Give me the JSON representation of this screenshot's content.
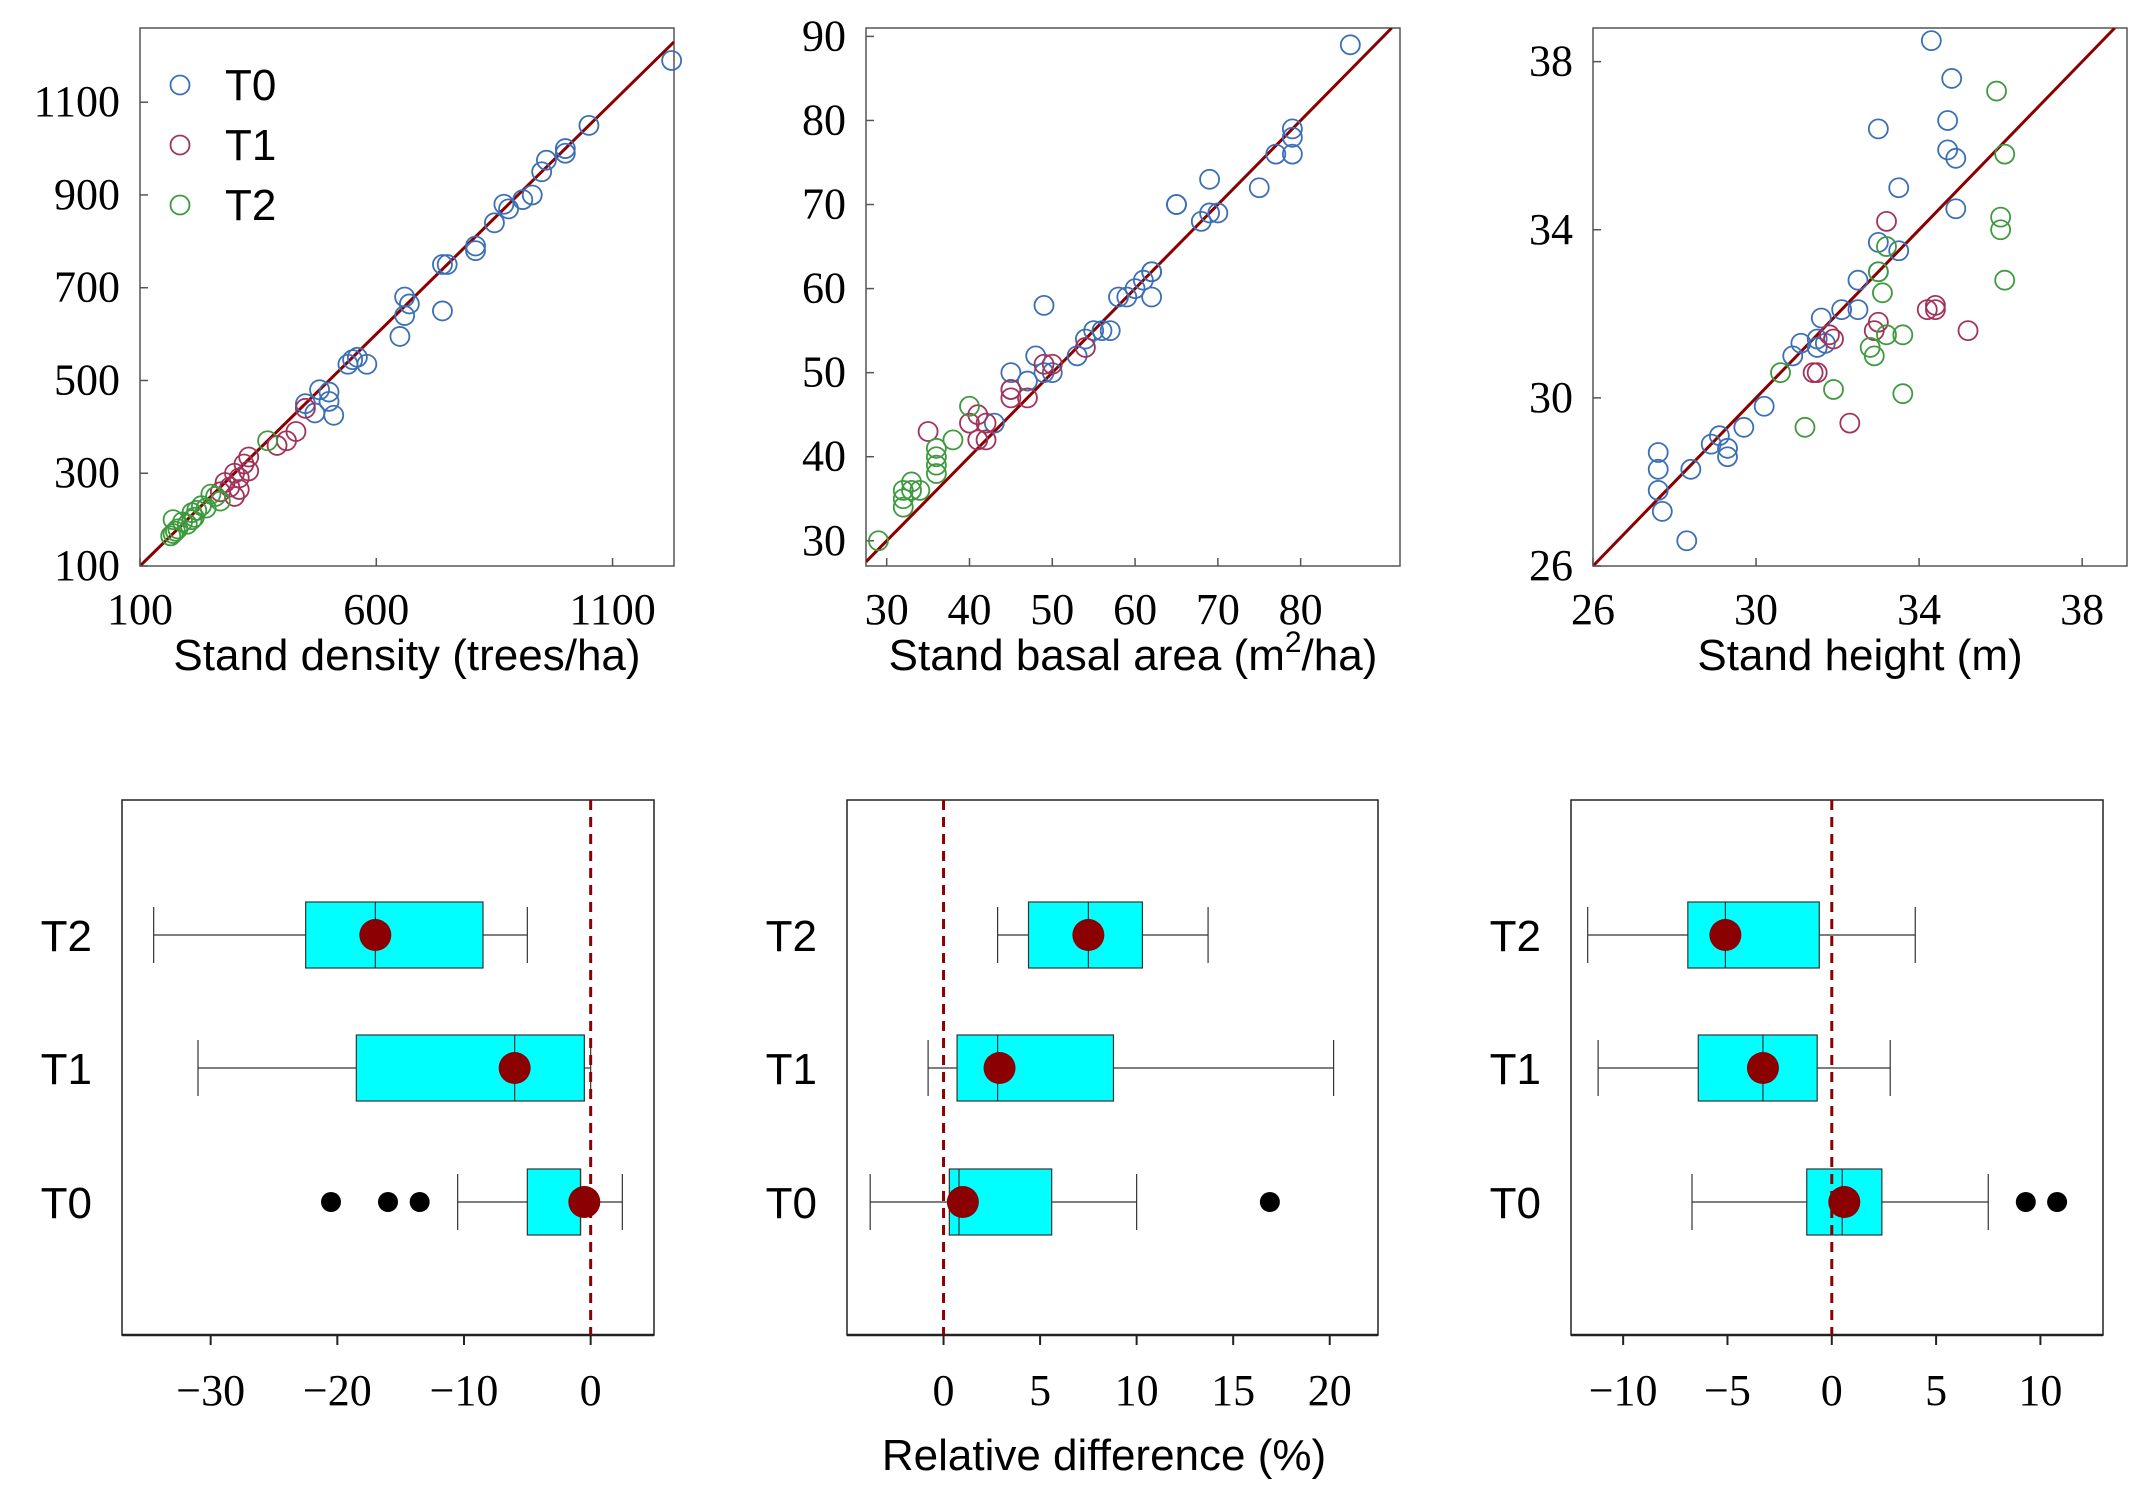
{
  "figure": {
    "shared_xlabel": "Relative difference (%)"
  },
  "colors": {
    "T0": "#3b6fb6",
    "T1": "#a3325a",
    "T2": "#3e9a3e",
    "line": "#8b0000",
    "box": "#00ffff",
    "mean": "#8b0000",
    "outlier": "#000000"
  },
  "chart_data": [
    {
      "id": "density",
      "type": "scatter",
      "xlabel": "Stand density (trees/ha)",
      "ylabel": "",
      "xlim": [
        100,
        1230
      ],
      "ylim": [
        100,
        1260
      ],
      "xticks": [
        100,
        600,
        1100
      ],
      "yticks": [
        100,
        300,
        500,
        700,
        900,
        1100
      ],
      "reference_line": "1:1",
      "legend": {
        "position": "top-left",
        "entries": [
          "T0",
          "T1",
          "T2"
        ]
      },
      "series": [
        {
          "name": "T0",
          "points": [
            [
              1225,
              1190
            ],
            [
              1050,
              1050
            ],
            [
              1000,
              990
            ],
            [
              1000,
              1000
            ],
            [
              960,
              975
            ],
            [
              950,
              950
            ],
            [
              930,
              900
            ],
            [
              910,
              890
            ],
            [
              870,
              880
            ],
            [
              880,
              870
            ],
            [
              850,
              840
            ],
            [
              810,
              790
            ],
            [
              810,
              780
            ],
            [
              750,
              750
            ],
            [
              740,
              750
            ],
            [
              740,
              650
            ],
            [
              670,
              665
            ],
            [
              660,
              680
            ],
            [
              660,
              640
            ],
            [
              650,
              595
            ],
            [
              580,
              535
            ],
            [
              560,
              550
            ],
            [
              550,
              545
            ],
            [
              540,
              535
            ],
            [
              500,
              475
            ],
            [
              500,
              455
            ],
            [
              510,
              425
            ],
            [
              470,
              430
            ],
            [
              480,
              480
            ],
            [
              450,
              450
            ]
          ]
        },
        {
          "name": "T1",
          "points": [
            [
              450,
              440
            ],
            [
              430,
              390
            ],
            [
              410,
              370
            ],
            [
              390,
              360
            ],
            [
              330,
              305
            ],
            [
              330,
              335
            ],
            [
              320,
              320
            ],
            [
              310,
              290
            ],
            [
              310,
              265
            ],
            [
              300,
              300
            ],
            [
              300,
              250
            ],
            [
              290,
              270
            ],
            [
              280,
              280
            ],
            [
              270,
              260
            ]
          ]
        },
        {
          "name": "T2",
          "points": [
            [
              370,
              370
            ],
            [
              270,
              240
            ],
            [
              260,
              250
            ],
            [
              250,
              255
            ],
            [
              240,
              225
            ],
            [
              230,
              230
            ],
            [
              220,
              220
            ],
            [
              210,
              200
            ],
            [
              215,
              205
            ],
            [
              210,
              215
            ],
            [
              200,
              190
            ],
            [
              190,
              195
            ],
            [
              180,
              180
            ],
            [
              175,
              175
            ],
            [
              170,
              170
            ],
            [
              165,
              165
            ],
            [
              170,
              200
            ]
          ]
        }
      ]
    },
    {
      "id": "basal",
      "type": "scatter",
      "xlabel": "Stand basal area (m",
      "xlabel_sup": "2",
      "xlabel_end": "/ha)",
      "ylabel": "",
      "xlim": [
        27.5,
        92
      ],
      "ylim": [
        27,
        91
      ],
      "xticks": [
        30,
        40,
        50,
        60,
        70,
        80
      ],
      "yticks": [
        30,
        40,
        50,
        60,
        70,
        80,
        90
      ],
      "reference_line": "1:1",
      "series": [
        {
          "name": "T0",
          "points": [
            [
              86,
              89
            ],
            [
              79,
              79
            ],
            [
              79,
              78
            ],
            [
              79,
              76
            ],
            [
              77,
              76
            ],
            [
              75,
              72
            ],
            [
              70,
              69
            ],
            [
              69,
              73
            ],
            [
              69,
              69
            ],
            [
              68,
              68
            ],
            [
              65,
              70
            ],
            [
              65,
              70
            ],
            [
              62,
              62
            ],
            [
              62,
              59
            ],
            [
              62,
              62
            ],
            [
              61,
              61
            ],
            [
              60,
              60
            ],
            [
              59,
              59
            ],
            [
              58,
              59
            ],
            [
              57,
              55
            ],
            [
              56,
              55
            ],
            [
              55,
              55
            ],
            [
              54,
              54
            ],
            [
              53,
              52
            ],
            [
              50,
              50
            ],
            [
              49,
              58
            ],
            [
              49,
              50
            ],
            [
              48,
              52
            ],
            [
              47,
              49
            ],
            [
              45,
              50
            ],
            [
              45,
              48
            ],
            [
              43,
              44
            ]
          ]
        },
        {
          "name": "T1",
          "points": [
            [
              54,
              53
            ],
            [
              50,
              51
            ],
            [
              49,
              51
            ],
            [
              47,
              47
            ],
            [
              45,
              47
            ],
            [
              45,
              48
            ],
            [
              42,
              42
            ],
            [
              42,
              44
            ],
            [
              41,
              45
            ],
            [
              41,
              42
            ],
            [
              40,
              44
            ],
            [
              35,
              43
            ]
          ]
        },
        {
          "name": "T2",
          "points": [
            [
              40,
              46
            ],
            [
              38,
              42
            ],
            [
              36,
              38
            ],
            [
              36,
              39
            ],
            [
              36,
              41
            ],
            [
              36,
              40
            ],
            [
              34,
              36
            ],
            [
              33,
              36
            ],
            [
              33,
              37
            ],
            [
              32,
              34
            ],
            [
              32,
              36
            ],
            [
              32,
              35
            ],
            [
              29,
              30
            ]
          ]
        }
      ]
    },
    {
      "id": "height",
      "type": "scatter",
      "xlabel": "Stand height (m)",
      "ylabel": "",
      "xlim": [
        26,
        39.1
      ],
      "ylim": [
        26,
        38.8
      ],
      "xticks": [
        26,
        30,
        34,
        38
      ],
      "yticks": [
        26,
        30,
        34,
        38
      ],
      "reference_line": "1:1",
      "series": [
        {
          "name": "T0",
          "points": [
            [
              34.3,
              38.5
            ],
            [
              34.8,
              37.6
            ],
            [
              34.7,
              36.6
            ],
            [
              33.0,
              36.4
            ],
            [
              34.7,
              35.9
            ],
            [
              34.9,
              35.7
            ],
            [
              33.5,
              35.0
            ],
            [
              34.9,
              34.5
            ],
            [
              33.0,
              33.7
            ],
            [
              33.5,
              33.5
            ],
            [
              33.0,
              33.0
            ],
            [
              32.5,
              32.8
            ],
            [
              32.1,
              32.1
            ],
            [
              32.5,
              32.1
            ],
            [
              31.6,
              31.9
            ],
            [
              31.5,
              31.4
            ],
            [
              31.1,
              31.3
            ],
            [
              31.5,
              31.2
            ],
            [
              31.7,
              31.3
            ],
            [
              30.9,
              31.0
            ],
            [
              30.2,
              29.8
            ],
            [
              29.7,
              29.3
            ],
            [
              29.1,
              29.1
            ],
            [
              28.9,
              28.9
            ],
            [
              29.3,
              28.8
            ],
            [
              29.3,
              28.6
            ],
            [
              28.4,
              28.3
            ],
            [
              27.6,
              28.7
            ],
            [
              27.6,
              28.3
            ],
            [
              27.6,
              27.8
            ],
            [
              27.7,
              27.3
            ],
            [
              28.3,
              26.6
            ]
          ]
        },
        {
          "name": "T1",
          "points": [
            [
              33.2,
              34.2
            ],
            [
              34.4,
              32.2
            ],
            [
              34.2,
              32.1
            ],
            [
              34.4,
              32.1
            ],
            [
              33.0,
              31.8
            ],
            [
              32.9,
              31.6
            ],
            [
              35.2,
              31.6
            ],
            [
              31.9,
              31.4
            ],
            [
              31.8,
              31.5
            ],
            [
              31.4,
              30.6
            ],
            [
              31.5,
              30.6
            ],
            [
              32.3,
              29.4
            ]
          ]
        },
        {
          "name": "T2",
          "points": [
            [
              35.9,
              37.3
            ],
            [
              36.1,
              35.8
            ],
            [
              36.0,
              34.3
            ],
            [
              36.0,
              34.0
            ],
            [
              33.2,
              33.6
            ],
            [
              33.0,
              33.0
            ],
            [
              36.1,
              32.8
            ],
            [
              33.1,
              32.5
            ],
            [
              33.2,
              31.5
            ],
            [
              33.6,
              31.5
            ],
            [
              32.8,
              31.2
            ],
            [
              32.9,
              31.0
            ],
            [
              30.6,
              30.6
            ],
            [
              31.9,
              30.2
            ],
            [
              33.6,
              30.1
            ],
            [
              31.2,
              29.3
            ]
          ]
        }
      ]
    },
    {
      "id": "box_density",
      "type": "box",
      "xlabel": "",
      "xlim": [
        -37,
        5
      ],
      "xticks": [
        -30,
        -20,
        -10,
        0
      ],
      "xtick_labels": [
        "−30",
        "−20",
        "−10",
        "0"
      ],
      "reference_line": 0,
      "categories": [
        "T2",
        "T1",
        "T0"
      ],
      "boxes": [
        {
          "name": "T2",
          "whisker_low": -34.5,
          "q1": -22.5,
          "median": -17,
          "q3": -8.5,
          "whisker_high": -5,
          "mean": -17,
          "outliers": []
        },
        {
          "name": "T1",
          "whisker_low": -31,
          "q1": -18.5,
          "median": -6,
          "q3": -0.5,
          "whisker_high": 0,
          "mean": -6,
          "outliers": []
        },
        {
          "name": "T0",
          "whisker_low": -10.5,
          "q1": -5,
          "median": -0.8,
          "q3": -0.8,
          "whisker_high": 2.5,
          "mean": -0.5,
          "outliers": [
            -20.5,
            -16,
            -13.5
          ]
        }
      ]
    },
    {
      "id": "box_basal",
      "type": "box",
      "xlabel": "",
      "xlim": [
        -5,
        22.5
      ],
      "xticks": [
        0,
        5,
        10,
        15,
        20
      ],
      "xtick_labels": [
        "0",
        "5",
        "10",
        "15",
        "20"
      ],
      "reference_line": 0,
      "categories": [
        "T2",
        "T1",
        "T0"
      ],
      "boxes": [
        {
          "name": "T2",
          "whisker_low": 2.8,
          "q1": 4.4,
          "median": 7.5,
          "q3": 10.3,
          "whisker_high": 13.7,
          "mean": 7.5,
          "outliers": []
        },
        {
          "name": "T1",
          "whisker_low": -0.8,
          "q1": 0.7,
          "median": 2.8,
          "q3": 8.8,
          "whisker_high": 20.2,
          "mean": 2.9,
          "outliers": []
        },
        {
          "name": "T0",
          "whisker_low": -3.8,
          "q1": 0.3,
          "median": 0.8,
          "q3": 5.6,
          "whisker_high": 10.0,
          "mean": 1.0,
          "outliers": [
            16.9
          ]
        }
      ]
    },
    {
      "id": "box_height",
      "type": "box",
      "xlabel": "",
      "xlim": [
        -12.5,
        13
      ],
      "xticks": [
        -10,
        -5,
        0,
        5,
        10
      ],
      "xtick_labels": [
        "−10",
        "−5",
        "0",
        "5",
        "10"
      ],
      "reference_line": 0,
      "categories": [
        "T2",
        "T1",
        "T0"
      ],
      "boxes": [
        {
          "name": "T2",
          "whisker_low": -11.7,
          "q1": -6.9,
          "median": -5.1,
          "q3": -0.6,
          "whisker_high": 4.0,
          "mean": -5.1,
          "outliers": []
        },
        {
          "name": "T1",
          "whisker_low": -11.2,
          "q1": -6.4,
          "median": -3.3,
          "q3": -0.7,
          "whisker_high": 2.8,
          "mean": -3.3,
          "outliers": []
        },
        {
          "name": "T0",
          "whisker_low": -6.7,
          "q1": -1.2,
          "median": 0.5,
          "q3": 2.4,
          "whisker_high": 7.5,
          "mean": 0.6,
          "outliers": [
            9.3,
            10.8
          ]
        }
      ]
    }
  ]
}
